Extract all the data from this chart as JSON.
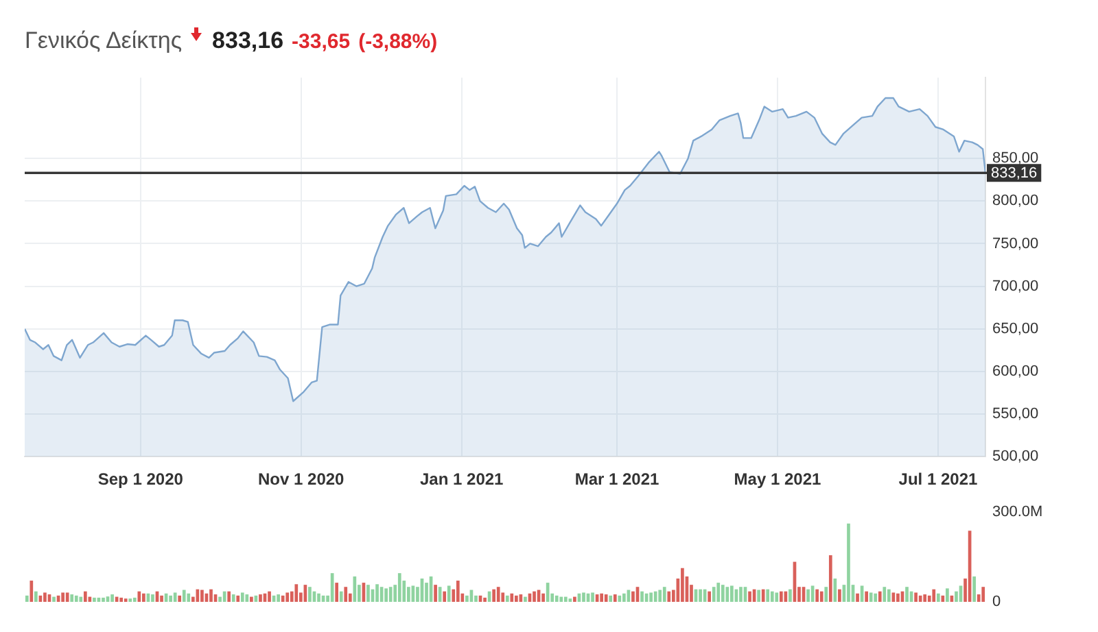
{
  "chart_data": [
    {
      "type": "area",
      "title": "Γενικός Δείκτης",
      "annotations": [
        "833,16",
        "-33,65",
        "(-3,88%)"
      ],
      "x": [
        "2020-07-19",
        "2020-07-21",
        "2020-07-23",
        "2020-07-26",
        "2020-07-28",
        "2020-07-30",
        "2020-08-02",
        "2020-08-04",
        "2020-08-06",
        "2020-08-09",
        "2020-08-12",
        "2020-08-14",
        "2020-08-18",
        "2020-08-21",
        "2020-08-24",
        "2020-08-27",
        "2020-08-30",
        "2020-09-03",
        "2020-09-05",
        "2020-09-08",
        "2020-09-10",
        "2020-09-13",
        "2020-09-14",
        "2020-09-17",
        "2020-09-19",
        "2020-09-21",
        "2020-09-24",
        "2020-09-27",
        "2020-09-29",
        "2020-10-03",
        "2020-10-05",
        "2020-10-08",
        "2020-10-10",
        "2020-10-14",
        "2020-10-16",
        "2020-10-19",
        "2020-10-22",
        "2020-10-24",
        "2020-10-27",
        "2020-10-29",
        "2020-11-02",
        "2020-11-05",
        "2020-11-07",
        "2020-11-09",
        "2020-11-12",
        "2020-11-15",
        "2020-11-16",
        "2020-11-19",
        "2020-11-22",
        "2020-11-25",
        "2020-11-28",
        "2020-11-29",
        "2020-12-02",
        "2020-12-04",
        "2020-12-07",
        "2020-12-10",
        "2020-12-12",
        "2020-12-15",
        "2020-12-17",
        "2020-12-20",
        "2020-12-22",
        "2020-12-25",
        "2020-12-26",
        "2020-12-30",
        "2021-01-02",
        "2021-01-04",
        "2021-01-06",
        "2021-01-08",
        "2021-01-11",
        "2021-01-14",
        "2021-01-17",
        "2021-01-19",
        "2021-01-22",
        "2021-01-24",
        "2021-01-25",
        "2021-01-27",
        "2021-01-30",
        "2021-02-02",
        "2021-02-04",
        "2021-02-07",
        "2021-02-08",
        "2021-02-11",
        "2021-02-15",
        "2021-02-17",
        "2021-02-21",
        "2021-02-23",
        "2021-02-26",
        "2021-03-01",
        "2021-03-04",
        "2021-03-06",
        "2021-03-09",
        "2021-03-13",
        "2021-03-17",
        "2021-03-18",
        "2021-03-21",
        "2021-03-25",
        "2021-03-28",
        "2021-03-30",
        "2021-04-02",
        "2021-04-06",
        "2021-04-09",
        "2021-04-13",
        "2021-04-16",
        "2021-04-17",
        "2021-04-18",
        "2021-04-21",
        "2021-04-24",
        "2021-04-26",
        "2021-04-29",
        "2021-05-03",
        "2021-05-05",
        "2021-05-08",
        "2021-05-12",
        "2021-05-15",
        "2021-05-18",
        "2021-05-21",
        "2021-05-23",
        "2021-05-26",
        "2021-05-30",
        "2021-06-02",
        "2021-06-06",
        "2021-06-08",
        "2021-06-11",
        "2021-06-14",
        "2021-06-16",
        "2021-06-20",
        "2021-06-24",
        "2021-06-27",
        "2021-06-30",
        "2021-07-03",
        "2021-07-07",
        "2021-07-09",
        "2021-07-11",
        "2021-07-14",
        "2021-07-16",
        "2021-07-18",
        "2021-07-19"
      ],
      "series": [
        {
          "color": "#7ea6cf",
          "values": [
            650,
            637,
            634,
            626,
            631,
            618,
            613,
            631,
            637,
            616,
            631,
            634,
            645,
            634,
            629,
            632,
            631,
            642,
            637,
            629,
            631,
            642,
            660,
            660,
            658,
            631,
            621,
            616,
            622,
            624,
            631,
            639,
            647,
            634,
            618,
            617,
            613,
            602,
            592,
            565,
            576,
            587,
            589,
            652,
            655,
            655,
            689,
            705,
            700,
            703,
            721,
            734,
            758,
            771,
            784,
            792,
            774,
            782,
            787,
            792,
            768,
            789,
            806,
            808,
            818,
            813,
            817,
            800,
            792,
            787,
            797,
            790,
            768,
            760,
            745,
            750,
            747,
            758,
            763,
            774,
            758,
            774,
            795,
            787,
            779,
            771,
            784,
            797,
            813,
            818,
            829,
            845,
            858,
            853,
            834,
            832,
            850,
            871,
            876,
            884,
            895,
            900,
            903,
            892,
            874,
            874,
            895,
            911,
            905,
            908,
            898,
            900,
            905,
            898,
            879,
            869,
            866,
            879,
            890,
            898,
            900,
            911,
            921,
            921,
            911,
            905,
            908,
            900,
            887,
            884,
            876,
            858,
            871,
            869,
            866,
            861,
            833.16
          ]
        }
      ],
      "xlim": [
        "2020-07-19",
        "2021-07-19"
      ],
      "xticks": [
        {
          "value": "2020-09-01",
          "label": "Sep 1 2020"
        },
        {
          "value": "2020-11-01",
          "label": "Nov 1 2020"
        },
        {
          "value": "2021-01-01",
          "label": "Jan 1 2021"
        },
        {
          "value": "2021-03-01",
          "label": "Mar 1 2021"
        },
        {
          "value": "2021-05-01",
          "label": "May 1 2021"
        },
        {
          "value": "2021-07-01",
          "label": "Jul 1 2021"
        }
      ],
      "ylim": [
        500,
        945
      ],
      "yticks": [
        {
          "value": 500,
          "label": "500,00"
        },
        {
          "value": 550,
          "label": "550,00"
        },
        {
          "value": 600,
          "label": "600,00"
        },
        {
          "value": 650,
          "label": "650,00"
        },
        {
          "value": 700,
          "label": "700,00"
        },
        {
          "value": 750,
          "label": "750,00"
        },
        {
          "value": 800,
          "label": "800,00"
        },
        {
          "value": 850,
          "label": "850,00"
        }
      ],
      "grid": true,
      "marker": "none",
      "ref_lines": [
        {
          "axis": "y",
          "value": 833.16,
          "label": "833,16",
          "color": "#333333"
        }
      ]
    },
    {
      "type": "bar",
      "tick_labels": "y",
      "categories": [
        null,
        null,
        null,
        null,
        null,
        null,
        null,
        null,
        null,
        null,
        null,
        null,
        null,
        null,
        null,
        null,
        null,
        null,
        null,
        null,
        null,
        null,
        null,
        null,
        null,
        null,
        null,
        null,
        null,
        null,
        null,
        null,
        null,
        null,
        null,
        null,
        null,
        null,
        null,
        null,
        null,
        null,
        null,
        null,
        null,
        null,
        null,
        null,
        null,
        null,
        null,
        null,
        null,
        null,
        null,
        null,
        null,
        null,
        null,
        null,
        null,
        null,
        null,
        null,
        null,
        null,
        null,
        null,
        null,
        null,
        null,
        null,
        null,
        null,
        null,
        null,
        null,
        null,
        null,
        null,
        null,
        null,
        null,
        null,
        null,
        null,
        null,
        null,
        null,
        null,
        null,
        null,
        null,
        null,
        null,
        null,
        null,
        null,
        null,
        null,
        null,
        null,
        null,
        null,
        null,
        null,
        null,
        null,
        null,
        null,
        null,
        null,
        null,
        null,
        null,
        null,
        null,
        null,
        null,
        null,
        null,
        null,
        null,
        null,
        null,
        null,
        null,
        null,
        null,
        null,
        null,
        null,
        null,
        null,
        null,
        null,
        null,
        null,
        null,
        null,
        null,
        null,
        null,
        null,
        null,
        null,
        null,
        null,
        null,
        null,
        null,
        null,
        null,
        null,
        null,
        null,
        null,
        null,
        null,
        null,
        null,
        null,
        null,
        null,
        null,
        null,
        null,
        null,
        null,
        null,
        null,
        null,
        null,
        null,
        null,
        null,
        null,
        null,
        null,
        null,
        null,
        null,
        null,
        null,
        null,
        null,
        null,
        null,
        null,
        null,
        null,
        null,
        null,
        null,
        null,
        null,
        null,
        null,
        null,
        null,
        null,
        null,
        null,
        null,
        null,
        null,
        null,
        null,
        null,
        null,
        null,
        null,
        null,
        null
      ],
      "values": [
        21,
        71,
        35,
        21,
        31,
        25,
        17,
        21,
        31,
        31,
        25,
        21,
        17,
        35,
        17,
        14,
        14,
        14,
        18,
        25,
        17,
        14,
        11,
        11,
        14,
        35,
        28,
        28,
        25,
        35,
        21,
        28,
        21,
        31,
        21,
        40,
        28,
        17,
        42,
        40,
        28,
        42,
        25,
        17,
        35,
        35,
        25,
        21,
        31,
        25,
        17,
        21,
        25,
        28,
        35,
        21,
        25,
        21,
        31,
        35,
        59,
        31,
        57,
        50,
        35,
        28,
        21,
        21,
        96,
        64,
        35,
        50,
        28,
        85,
        57,
        64,
        57,
        42,
        59,
        50,
        45,
        50,
        57,
        96,
        71,
        50,
        54,
        50,
        78,
        64,
        85,
        57,
        50,
        35,
        54,
        42,
        71,
        28,
        21,
        40,
        21,
        21,
        14,
        35,
        42,
        50,
        31,
        21,
        28,
        21,
        25,
        17,
        28,
        35,
        40,
        28,
        64,
        28,
        21,
        17,
        17,
        11,
        17,
        28,
        31,
        28,
        31,
        25,
        28,
        25,
        21,
        25,
        21,
        28,
        40,
        35,
        50,
        35,
        28,
        31,
        35,
        40,
        50,
        35,
        40,
        78,
        113,
        85,
        57,
        42,
        42,
        42,
        35,
        50,
        64,
        57,
        50,
        54,
        42,
        50,
        50,
        35,
        42,
        40,
        42,
        42,
        35,
        31,
        35,
        35,
        42,
        134,
        50,
        50,
        42,
        54,
        42,
        35,
        50,
        156,
        78,
        42,
        57,
        262,
        57,
        28,
        54,
        35,
        31,
        28,
        35,
        50,
        42,
        31,
        28,
        35,
        50,
        35,
        31,
        21,
        25,
        21,
        42,
        28,
        21,
        45,
        21,
        35,
        54,
        78,
        238,
        85,
        25,
        50
      ],
      "colors": [
        "#8fd3a0",
        "#d9605a",
        "#8fd3a0",
        "#d9605a",
        "#d9605a",
        "#d9605a",
        "#8fd3a0",
        "#d9605a",
        "#d9605a",
        "#d9605a",
        "#8fd3a0",
        "#8fd3a0",
        "#8fd3a0",
        "#d9605a",
        "#d9605a",
        "#8fd3a0",
        "#8fd3a0",
        "#8fd3a0",
        "#8fd3a0",
        "#8fd3a0",
        "#d9605a",
        "#d9605a",
        "#d9605a",
        "#8fd3a0",
        "#8fd3a0",
        "#d9605a",
        "#d9605a",
        "#8fd3a0",
        "#8fd3a0",
        "#d9605a",
        "#d9605a",
        "#8fd3a0",
        "#8fd3a0",
        "#8fd3a0",
        "#d9605a",
        "#8fd3a0",
        "#8fd3a0",
        "#d9605a",
        "#d9605a",
        "#d9605a",
        "#d9605a",
        "#d9605a",
        "#d9605a",
        "#8fd3a0",
        "#8fd3a0",
        "#d9605a",
        "#8fd3a0",
        "#d9605a",
        "#8fd3a0",
        "#8fd3a0",
        "#d9605a",
        "#8fd3a0",
        "#d9605a",
        "#d9605a",
        "#d9605a",
        "#8fd3a0",
        "#8fd3a0",
        "#d9605a",
        "#d9605a",
        "#d9605a",
        "#d9605a",
        "#d9605a",
        "#d9605a",
        "#8fd3a0",
        "#8fd3a0",
        "#8fd3a0",
        "#8fd3a0",
        "#8fd3a0",
        "#8fd3a0",
        "#d9605a",
        "#8fd3a0",
        "#d9605a",
        "#d9605a",
        "#8fd3a0",
        "#8fd3a0",
        "#d9605a",
        "#8fd3a0",
        "#8fd3a0",
        "#8fd3a0",
        "#8fd3a0",
        "#8fd3a0",
        "#8fd3a0",
        "#8fd3a0",
        "#8fd3a0",
        "#8fd3a0",
        "#8fd3a0",
        "#8fd3a0",
        "#8fd3a0",
        "#8fd3a0",
        "#8fd3a0",
        "#8fd3a0",
        "#d9605a",
        "#8fd3a0",
        "#d9605a",
        "#8fd3a0",
        "#d9605a",
        "#d9605a",
        "#d9605a",
        "#8fd3a0",
        "#8fd3a0",
        "#8fd3a0",
        "#d9605a",
        "#d9605a",
        "#8fd3a0",
        "#d9605a",
        "#d9605a",
        "#d9605a",
        "#8fd3a0",
        "#d9605a",
        "#d9605a",
        "#d9605a",
        "#8fd3a0",
        "#d9605a",
        "#d9605a",
        "#d9605a",
        "#d9605a",
        "#8fd3a0",
        "#8fd3a0",
        "#8fd3a0",
        "#8fd3a0",
        "#8fd3a0",
        "#8fd3a0",
        "#d9605a",
        "#8fd3a0",
        "#8fd3a0",
        "#8fd3a0",
        "#8fd3a0",
        "#d9605a",
        "#d9605a",
        "#d9605a",
        "#8fd3a0",
        "#d9605a",
        "#8fd3a0",
        "#8fd3a0",
        "#8fd3a0",
        "#d9605a",
        "#d9605a",
        "#8fd3a0",
        "#8fd3a0",
        "#8fd3a0",
        "#8fd3a0",
        "#8fd3a0",
        "#8fd3a0",
        "#d9605a",
        "#d9605a",
        "#d9605a",
        "#d9605a",
        "#d9605a",
        "#d9605a",
        "#8fd3a0",
        "#8fd3a0",
        "#8fd3a0",
        "#d9605a",
        "#8fd3a0",
        "#8fd3a0",
        "#8fd3a0",
        "#8fd3a0",
        "#8fd3a0",
        "#8fd3a0",
        "#8fd3a0",
        "#8fd3a0",
        "#d9605a",
        "#d9605a",
        "#8fd3a0",
        "#d9605a",
        "#8fd3a0",
        "#8fd3a0",
        "#8fd3a0",
        "#d9605a",
        "#d9605a",
        "#8fd3a0",
        "#d9605a",
        "#d9605a",
        "#d9605a",
        "#8fd3a0",
        "#8fd3a0",
        "#d9605a",
        "#d9605a",
        "#8fd3a0",
        "#d9605a",
        "#8fd3a0",
        "#d9605a",
        "#8fd3a0",
        "#8fd3a0",
        "#8fd3a0",
        "#d9605a",
        "#8fd3a0",
        "#d9605a",
        "#8fd3a0",
        "#8fd3a0",
        "#d9605a",
        "#8fd3a0",
        "#8fd3a0",
        "#d9605a",
        "#d9605a",
        "#d9605a",
        "#8fd3a0",
        "#8fd3a0",
        "#d9605a",
        "#d9605a",
        "#d9605a",
        "#d9605a",
        "#d9605a",
        "#8fd3a0",
        "#d9605a",
        "#8fd3a0",
        "#d9605a",
        "#8fd3a0",
        "#8fd3a0",
        "#d9605a",
        "#d9605a",
        "#8fd3a0",
        "#d9605a",
        "#d9605a"
      ],
      "ylim": [
        0,
        300
      ],
      "yticks": [
        {
          "value": 0,
          "label": "0"
        },
        {
          "value": 300,
          "label": "300.0M"
        }
      ]
    }
  ]
}
